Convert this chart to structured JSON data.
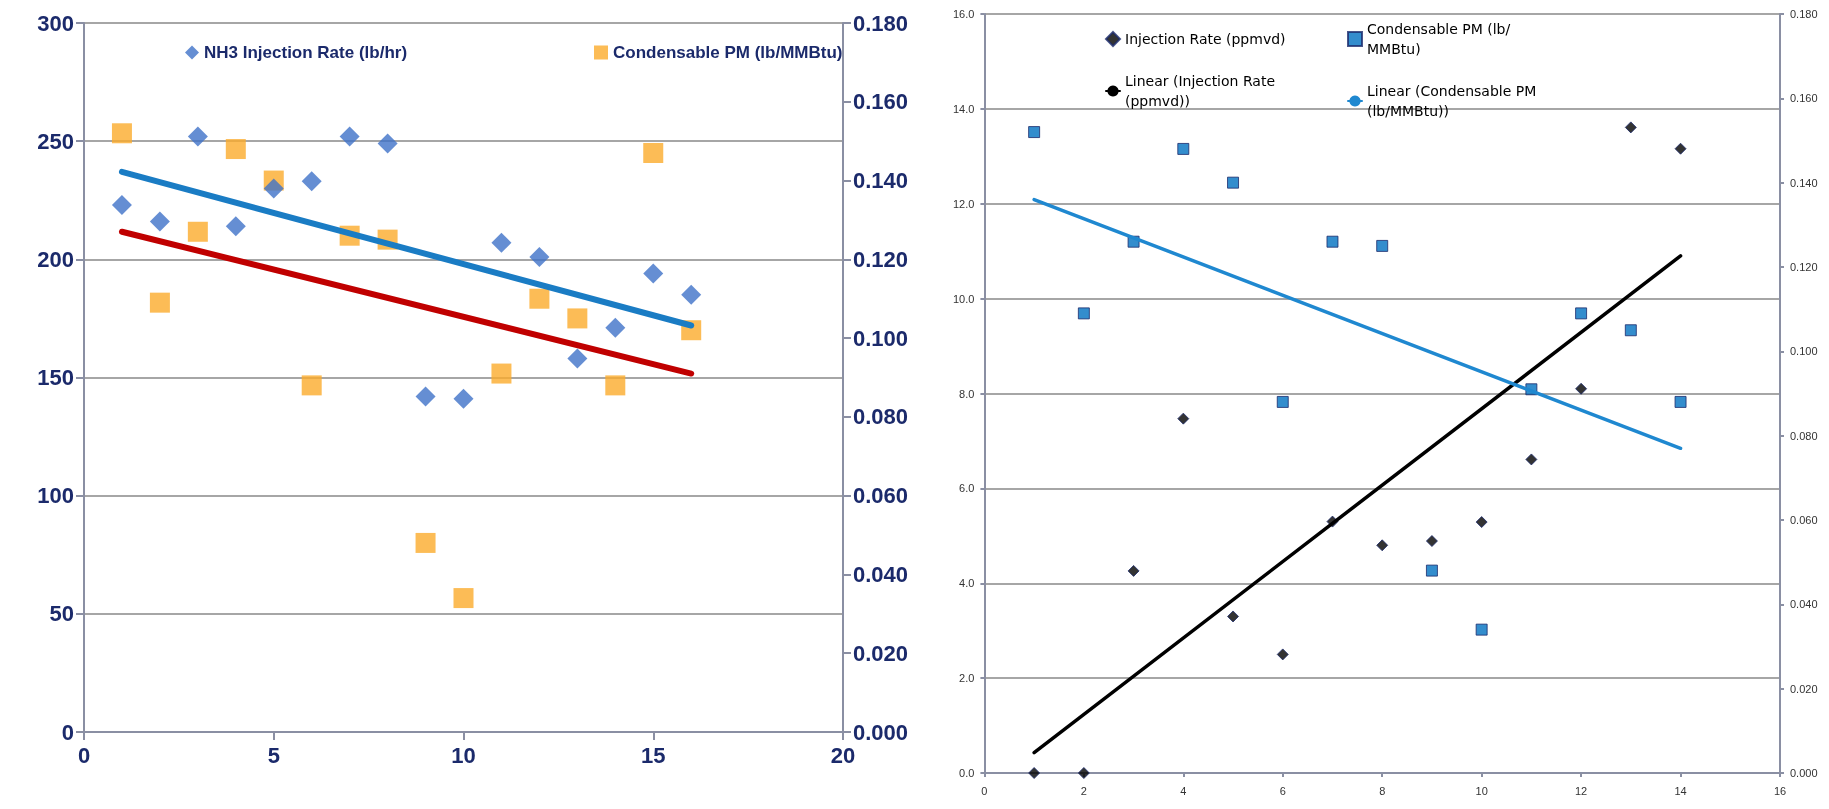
{
  "chart_data": [
    {
      "type": "scatter",
      "x": [
        1,
        2,
        3,
        4,
        5,
        6,
        7,
        8,
        9,
        10,
        11,
        12,
        13,
        14,
        15,
        16
      ],
      "xlim": [
        0,
        20
      ],
      "xticks": [
        0,
        5,
        10,
        15,
        20
      ],
      "ylim": [
        0,
        300
      ],
      "yticks": [
        0,
        50,
        100,
        150,
        200,
        250,
        300
      ],
      "y2lim": [
        0,
        0.18
      ],
      "y2ticks": [
        {
          "value": 0,
          "label": "0.000"
        },
        {
          "value": 0.02,
          "label": "0.020"
        },
        {
          "value": 0.04,
          "label": "0.040"
        },
        {
          "value": 0.06,
          "label": "0.060"
        },
        {
          "value": 0.08,
          "label": "0.080"
        },
        {
          "value": 0.1,
          "label": "0.100"
        },
        {
          "value": 0.12,
          "label": "0.120"
        },
        {
          "value": 0.14,
          "label": "0.140"
        },
        {
          "value": 0.16,
          "label": "0.160"
        },
        {
          "value": 0.18,
          "label": "0.180"
        }
      ],
      "grid": "y",
      "legend": "top",
      "series": [
        {
          "name": "NH3 Injection Rate (lb/hr)",
          "color": "#3f72c8",
          "marker": "diamond",
          "values": [
            223,
            216,
            252,
            214,
            230,
            233,
            252,
            249,
            142,
            141,
            207,
            201,
            158,
            171,
            194,
            185
          ]
        },
        {
          "name": "Condensable PM (lb/MMBtu)",
          "color": "#fbab2c",
          "marker": "square",
          "axis": "y2",
          "values": [
            0.152,
            0.109,
            0.127,
            0.148,
            0.14,
            0.088,
            0.126,
            0.125,
            0.048,
            0.034,
            0.091,
            0.11,
            0.105,
            0.088,
            0.147,
            0.102
          ]
        },
        {
          "type": "line",
          "color": "#1a7cc4",
          "marker": "none",
          "line_style": "solid",
          "x": [
            1,
            16
          ],
          "values": [
            237,
            172
          ]
        },
        {
          "type": "line",
          "color": "#c00000",
          "marker": "none",
          "line_style": "solid",
          "axis": "y2",
          "x": [
            1,
            16
          ],
          "values": [
            0.127,
            0.091
          ]
        }
      ]
    },
    {
      "type": "scatter",
      "x": [
        1,
        2,
        3,
        4,
        5,
        6,
        7,
        8,
        9,
        10,
        11,
        12,
        13,
        14
      ],
      "xlim": [
        0,
        16
      ],
      "xticks": [
        0,
        2,
        4,
        6,
        8,
        10,
        12,
        14,
        16
      ],
      "ylim": [
        0,
        16
      ],
      "yticks": [
        {
          "value": 0,
          "label": "0.0"
        },
        {
          "value": 2,
          "label": "2.0"
        },
        {
          "value": 4,
          "label": "4.0"
        },
        {
          "value": 6,
          "label": "6.0"
        },
        {
          "value": 8,
          "label": "8.0"
        },
        {
          "value": 10,
          "label": "10.0"
        },
        {
          "value": 12,
          "label": "12.0"
        },
        {
          "value": 14,
          "label": "14.0"
        },
        {
          "value": 16,
          "label": "16.0"
        }
      ],
      "y2lim": [
        0,
        0.18
      ],
      "y2ticks": [
        {
          "value": 0,
          "label": "0.000"
        },
        {
          "value": 0.02,
          "label": "0.020"
        },
        {
          "value": 0.04,
          "label": "0.040"
        },
        {
          "value": 0.06,
          "label": "0.060"
        },
        {
          "value": 0.08,
          "label": "0.080"
        },
        {
          "value": 0.1,
          "label": "0.100"
        },
        {
          "value": 0.12,
          "label": "0.120"
        },
        {
          "value": 0.14,
          "label": "0.140"
        },
        {
          "value": 0.16,
          "label": "0.160"
        },
        {
          "value": 0.18,
          "label": "0.180"
        }
      ],
      "grid": "y",
      "legend": "top",
      "series": [
        {
          "name": "Injection Rate (ppmvd)",
          "color": "#000000",
          "marker": "diamond",
          "values": [
            0,
            0,
            4.26,
            7.47,
            3.3,
            2.5,
            5.3,
            4.8,
            4.89,
            5.29,
            6.61,
            8.1,
            13.61,
            13.16
          ]
        },
        {
          "type": "line",
          "name": "Linear (Injection Rate (ppmvd))",
          "color": "#000000",
          "marker": "none",
          "line_style": "solid",
          "x": [
            1,
            14
          ],
          "values": [
            0.43,
            10.9
          ]
        },
        {
          "name": "Condensable PM (lb/MMBtu)",
          "color": "#0070c0",
          "marker": "square",
          "axis": "y2",
          "values": [
            0.152,
            0.109,
            0.126,
            0.148,
            0.14,
            0.088,
            0.126,
            0.125,
            0.048,
            0.034,
            0.091,
            0.109,
            0.105,
            0.088
          ]
        },
        {
          "type": "line",
          "name": "Linear (Condensable PM (lb/MMBtu))",
          "color": "#1f88d0",
          "marker": "none",
          "line_style": "solid",
          "axis": "y2",
          "x": [
            1,
            14
          ],
          "values": [
            0.136,
            0.077
          ]
        }
      ]
    }
  ]
}
